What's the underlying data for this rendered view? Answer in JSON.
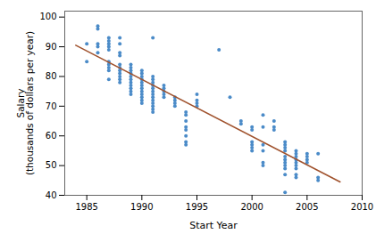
{
  "chart_data": {
    "type": "scatter",
    "xlabel": "Start Year",
    "ylabel": "Salary\n(thousands of dollars per year)",
    "xlim": [
      1983,
      2010
    ],
    "ylim": [
      40,
      102
    ],
    "xticks": [
      1985,
      1990,
      1995,
      2000,
      2005,
      2010
    ],
    "yticks": [
      40,
      50,
      60,
      70,
      80,
      90,
      100
    ],
    "grid": false,
    "series": [
      {
        "type": "scatter",
        "color": "#4b8bc8",
        "x": [
          1985,
          1985,
          1986,
          1986,
          1986,
          1986,
          1986,
          1987,
          1987,
          1987,
          1987,
          1987,
          1987,
          1987,
          1987,
          1987,
          1987,
          1988,
          1988,
          1988,
          1988,
          1988,
          1988,
          1988,
          1988,
          1988,
          1988,
          1988,
          1989,
          1989,
          1989,
          1989,
          1989,
          1989,
          1989,
          1989,
          1989,
          1989,
          1989,
          1990,
          1990,
          1990,
          1990,
          1990,
          1990,
          1990,
          1990,
          1990,
          1990,
          1990,
          1990,
          1991,
          1991,
          1991,
          1991,
          1991,
          1991,
          1991,
          1991,
          1991,
          1991,
          1991,
          1991,
          1991,
          1991,
          1992,
          1992,
          1992,
          1992,
          1992,
          1993,
          1993,
          1993,
          1993,
          1994,
          1994,
          1994,
          1994,
          1994,
          1994,
          1994,
          1994,
          1995,
          1995,
          1995,
          1995,
          1997,
          1998,
          1999,
          1999,
          2000,
          2000,
          2000,
          2000,
          2000,
          2000,
          2001,
          2001,
          2001,
          2001,
          2001,
          2001,
          2002,
          2002,
          2002,
          2003,
          2003,
          2003,
          2003,
          2003,
          2003,
          2003,
          2003,
          2003,
          2003,
          2003,
          2004,
          2004,
          2004,
          2004,
          2004,
          2004,
          2004,
          2004,
          2004,
          2005,
          2005,
          2005,
          2005,
          2006,
          2006,
          2006
        ],
        "values": [
          85,
          91,
          97,
          96,
          91,
          90,
          88,
          93,
          92,
          91,
          90,
          89,
          85,
          84,
          83,
          82,
          79,
          93,
          91,
          88,
          87,
          84,
          83,
          82,
          81,
          80,
          79,
          78,
          84,
          83,
          82,
          81,
          80,
          79,
          78,
          77,
          76,
          75,
          74,
          82,
          81,
          80,
          79,
          78,
          77,
          76,
          75,
          74,
          73,
          72,
          71,
          93,
          80,
          79,
          78,
          77,
          76,
          75,
          74,
          73,
          72,
          71,
          70,
          69,
          68,
          77,
          76,
          75,
          74,
          73,
          73,
          72,
          71,
          70,
          68,
          67,
          65,
          63,
          62,
          60,
          58,
          57,
          74,
          72,
          71,
          70,
          89,
          73,
          65,
          64,
          63,
          62,
          58,
          57,
          56,
          55,
          67,
          63,
          57,
          55,
          51,
          50,
          65,
          63,
          62,
          58,
          57,
          56,
          55,
          53,
          52,
          51,
          50,
          49,
          47,
          41,
          55,
          54,
          53,
          52,
          51,
          50,
          49,
          47,
          46,
          54,
          53,
          52,
          51,
          54,
          46,
          45
        ]
      },
      {
        "type": "line",
        "color": "#a0522d",
        "x": [
          1984,
          2008
        ],
        "values": [
          90.5,
          44.5
        ]
      }
    ]
  }
}
